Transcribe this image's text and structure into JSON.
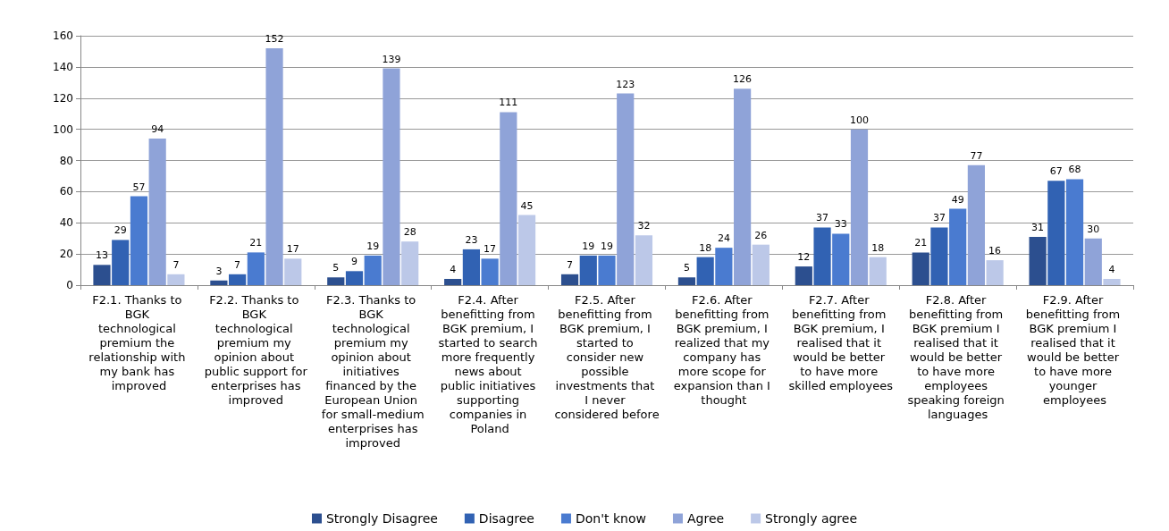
{
  "chart_data": {
    "type": "bar",
    "categories": [
      "F2.1. Thanks to BGK technological premium the relationship with my bank has improved",
      "F2.2. Thanks to BGK technological premium my opinion about public support for enterprises has improved",
      "F2.3. Thanks to BGK technological premium my opinion about initiatives financed by the European Union for small-medium enterprises has improved",
      "F2.4. After benefitting from BGK premium, I started to search more frequently news about public initiatives supporting companies in Poland",
      "F2.5. After benefitting from BGK premium, I started to consider new possible investments that I never considered before",
      "F2.6. After benefitting from BGK premium, I realized that my company has more scope for expansion than I thought",
      "F2.7. After benefitting from BGK premium, I realised that it would be better to have more skilled employees",
      "F2.8. After benefitting from BGK premium I realised that it would be better to have more employees speaking foreign languages",
      "F2.9. After benefitting from BGK premium I realised that it would be better to have more younger employees"
    ],
    "series": [
      {
        "name": "Strongly Disagree",
        "color": "#2c4f8f",
        "values": [
          13,
          3,
          5,
          4,
          7,
          5,
          12,
          21,
          31
        ]
      },
      {
        "name": "Disagree",
        "color": "#3162b3",
        "values": [
          29,
          7,
          9,
          23,
          19,
          18,
          37,
          37,
          67
        ]
      },
      {
        "name": "Don't know",
        "color": "#4a7bd0",
        "values": [
          57,
          21,
          19,
          17,
          19,
          24,
          33,
          49,
          68
        ]
      },
      {
        "name": "Agree",
        "color": "#8fa3d8",
        "values": [
          94,
          152,
          139,
          111,
          123,
          126,
          100,
          77,
          30
        ]
      },
      {
        "name": "Strongly agree",
        "color": "#bcc8e8",
        "values": [
          7,
          17,
          28,
          45,
          32,
          26,
          18,
          16,
          4
        ]
      }
    ],
    "ylim": [
      0,
      160
    ],
    "yticks": [
      0,
      20,
      40,
      60,
      80,
      100,
      120,
      140,
      160
    ],
    "grid": "y",
    "legend": "bottom",
    "data_labels": true
  }
}
